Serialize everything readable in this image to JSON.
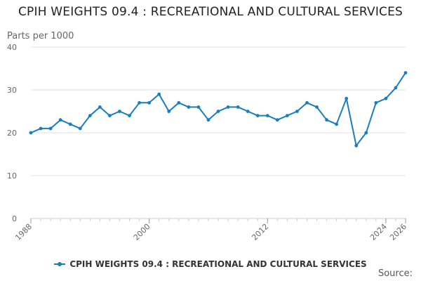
{
  "chart_data": {
    "type": "line",
    "title": "CPIH WEIGHTS 09.4 : RECREATIONAL AND CULTURAL SERVICES",
    "ylabel": "Parts per 1000",
    "xlabel": "",
    "ylim": [
      0,
      40
    ],
    "yticks": [
      0,
      10,
      20,
      30,
      40
    ],
    "xlim": [
      1988,
      2026
    ],
    "xticks": [
      1988,
      2000,
      2012,
      2024,
      2026
    ],
    "grid": true,
    "legend_position": "bottom",
    "series": [
      {
        "name": "CPIH WEIGHTS 09.4 : RECREATIONAL AND CULTURAL SERVICES",
        "color": "#1a7dbf",
        "x": [
          1988,
          1989,
          1990,
          1991,
          1992,
          1993,
          1994,
          1995,
          1996,
          1997,
          1998,
          1999,
          2000,
          2001,
          2002,
          2003,
          2004,
          2005,
          2006,
          2007,
          2008,
          2009,
          2010,
          2011,
          2012,
          2013,
          2014,
          2015,
          2016,
          2017,
          2018,
          2019,
          2020,
          2021,
          2022,
          2023,
          2024,
          2025,
          2026
        ],
        "values": [
          20,
          21,
          21,
          23,
          22,
          21,
          24,
          26,
          24,
          25,
          24,
          27,
          27,
          29,
          25,
          27,
          26,
          26,
          23,
          25,
          26,
          26,
          25,
          24,
          24,
          23,
          24,
          25,
          27,
          26,
          23,
          22,
          28,
          17,
          20,
          27,
          28,
          30.5,
          34
        ]
      }
    ]
  },
  "source_label": "Source:"
}
